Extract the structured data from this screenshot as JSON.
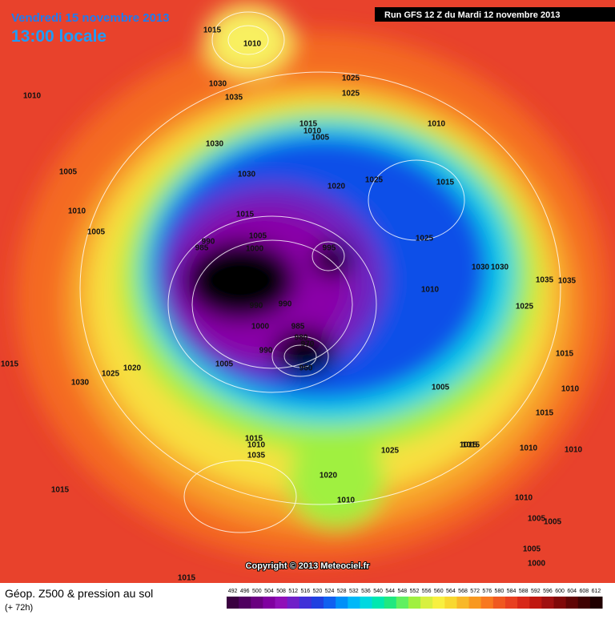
{
  "header": {
    "date": "Vendredi 15 novembre 2013",
    "time": "13:00 locale",
    "run": "Run GFS 12 Z du Mardi 12 novembre 2013"
  },
  "copyright": "Copyright © 2013 Meteociel.fr",
  "legend": {
    "title": "Géop. Z500 & pression au sol",
    "subtitle": "(+ 72h)"
  },
  "scale": {
    "labels": [
      492,
      496,
      500,
      504,
      508,
      512,
      516,
      520,
      524,
      528,
      532,
      536,
      540,
      544,
      548,
      552,
      556,
      560,
      564,
      568,
      572,
      576,
      580,
      584,
      588,
      592,
      596,
      600,
      604,
      608,
      612
    ],
    "colors": [
      "#3a0040",
      "#500060",
      "#6a0080",
      "#8000a0",
      "#9010b8",
      "#7020c8",
      "#4030d8",
      "#2040e0",
      "#1060f0",
      "#0090f8",
      "#00b8f8",
      "#00d8e0",
      "#00e8b0",
      "#20e880",
      "#60f060",
      "#a0f040",
      "#d8f040",
      "#f8f040",
      "#f8d830",
      "#f8b828",
      "#f89820",
      "#f87820",
      "#f05820",
      "#e84020",
      "#d82818",
      "#c01810",
      "#a01010",
      "#800808",
      "#600404",
      "#400202",
      "#200000"
    ]
  },
  "pressure_labels": [
    "1015",
    "1010",
    "1030",
    "1035",
    "1010",
    "1025",
    "1015",
    "1010",
    "1005",
    "1030",
    "1025",
    "1010",
    "1005",
    "1030",
    "1020",
    "1025",
    "1015",
    "1010",
    "1005",
    "1015",
    "1005",
    "1025",
    "1030",
    "1010",
    "1035",
    "990",
    "985",
    "1000",
    "995",
    "1005",
    "990",
    "990",
    "1000",
    "985",
    "980",
    "970",
    "960",
    "990",
    "1005",
    "1015",
    "1020",
    "1025",
    "1030",
    "1015",
    "1010",
    "1025",
    "1035",
    "1015",
    "1015",
    "1015",
    "1010",
    "1010",
    "1005",
    "1005",
    "1000",
    "1015",
    "1010",
    "1025",
    "1030",
    "1035",
    "1020",
    "1010",
    "1015",
    "1015",
    "1010",
    "1005"
  ]
}
